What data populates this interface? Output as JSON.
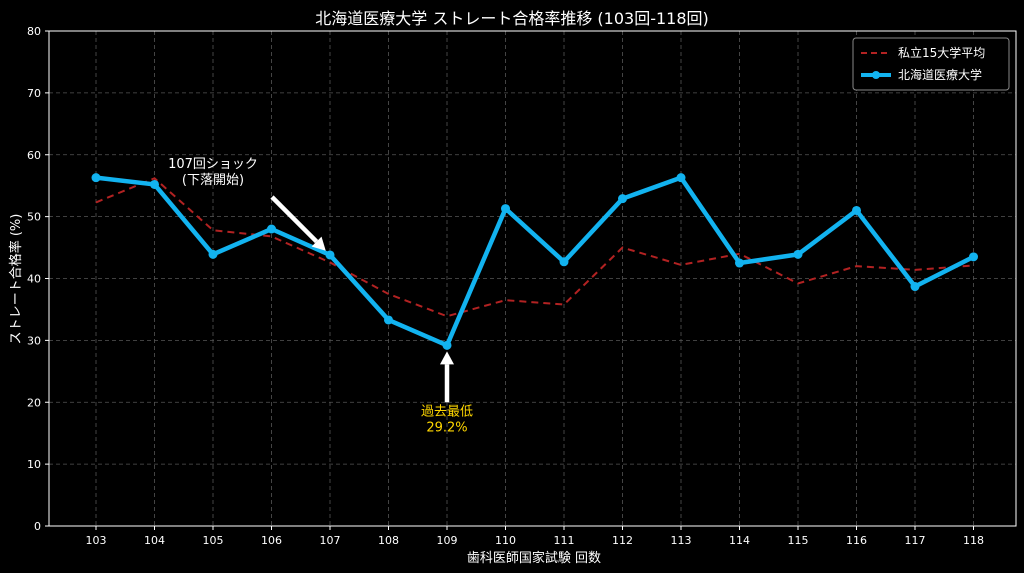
{
  "chart_data": {
    "type": "line",
    "title": "北海道医療大学 ストレート合格率推移 (103回-118回)",
    "xlabel": "歯科医師国家試験 回数",
    "ylabel": "ストレート合格率 (%)",
    "categories": [
      "103",
      "104",
      "105",
      "106",
      "107",
      "108",
      "109",
      "110",
      "111",
      "112",
      "113",
      "114",
      "115",
      "116",
      "117",
      "118"
    ],
    "ylim": [
      0,
      80
    ],
    "yticks": [
      "0",
      "10",
      "20",
      "30",
      "40",
      "50",
      "60",
      "70",
      "80"
    ],
    "grid": true,
    "legend_position": "top-right",
    "series": [
      {
        "name": "私立15大学平均",
        "style": "dashed",
        "color": "#b22222",
        "values": [
          52.3,
          56.2,
          47.8,
          46.8,
          42.6,
          37.5,
          33.9,
          36.5,
          35.8,
          45.0,
          42.2,
          44.0,
          39.2,
          42.0,
          41.4,
          42.1
        ]
      },
      {
        "name": "北海道医療大学",
        "style": "solid-marker",
        "color": "#12b3f0",
        "values": [
          56.3,
          55.2,
          43.9,
          48.0,
          43.8,
          33.3,
          29.2,
          51.3,
          42.7,
          52.9,
          56.3,
          42.5,
          43.9,
          51.0,
          38.7,
          43.5
        ]
      }
    ],
    "annotations": [
      {
        "id": "shock",
        "lines": [
          "107回ショック",
          "(下落開始)"
        ],
        "target_category": "107",
        "target_value": 43.8,
        "color": "#ffffff"
      },
      {
        "id": "lowest",
        "lines": [
          "過去最低",
          "29.2%"
        ],
        "target_category": "109",
        "target_value": 29.2,
        "color": "#ffd700"
      }
    ]
  }
}
